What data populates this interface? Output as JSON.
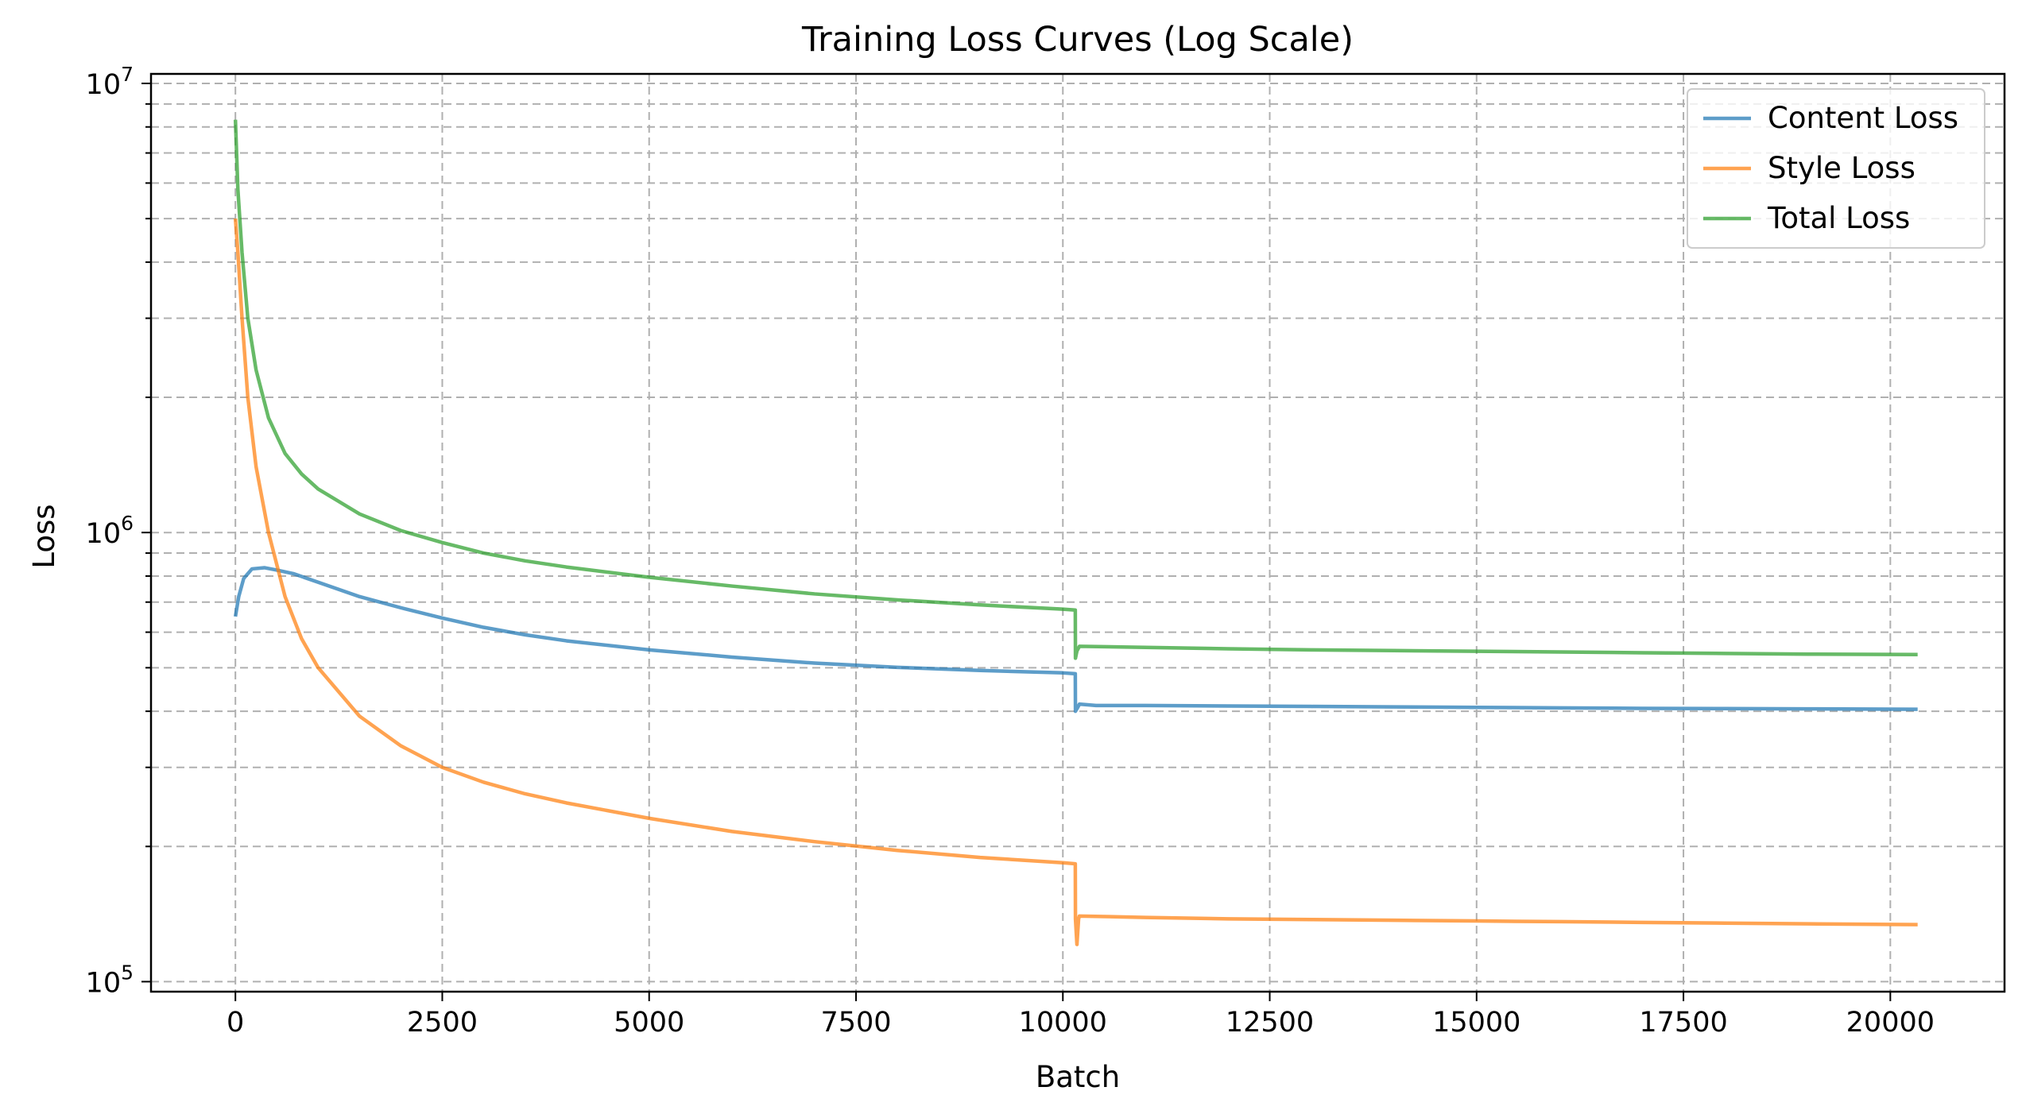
{
  "chart_data": {
    "type": "line",
    "title": "Training Loss Curves (Log Scale)",
    "xlabel": "Batch",
    "ylabel": "Loss",
    "xlim": [
      -1020,
      21380
    ],
    "ylim": [
      95000,
      10500000
    ],
    "yscale": "log",
    "grid": true,
    "legend_position": "top-right",
    "x_ticks": [
      {
        "value": 0,
        "label": "0"
      },
      {
        "value": 2500,
        "label": "2500"
      },
      {
        "value": 5000,
        "label": "5000"
      },
      {
        "value": 7500,
        "label": "7500"
      },
      {
        "value": 10000,
        "label": "10000"
      },
      {
        "value": 12500,
        "label": "12500"
      },
      {
        "value": 15000,
        "label": "15000"
      },
      {
        "value": 17500,
        "label": "17500"
      },
      {
        "value": 20000,
        "label": "20000"
      }
    ],
    "y_major_ticks": [
      {
        "value": 100000,
        "base": "10",
        "exp": "5"
      },
      {
        "value": 1000000,
        "base": "10",
        "exp": "6"
      },
      {
        "value": 10000000,
        "base": "10",
        "exp": "7"
      }
    ],
    "series": [
      {
        "name": "Content Loss",
        "color": "#1f77b4",
        "points": [
          [
            0,
            650000
          ],
          [
            40,
            720000
          ],
          [
            100,
            790000
          ],
          [
            200,
            830000
          ],
          [
            350,
            835000
          ],
          [
            500,
            825000
          ],
          [
            700,
            810000
          ],
          [
            1000,
            775000
          ],
          [
            1500,
            720000
          ],
          [
            2000,
            680000
          ],
          [
            2500,
            645000
          ],
          [
            3000,
            615000
          ],
          [
            3500,
            592000
          ],
          [
            4000,
            574000
          ],
          [
            5000,
            548000
          ],
          [
            6000,
            528000
          ],
          [
            7000,
            512000
          ],
          [
            8000,
            501000
          ],
          [
            9000,
            493000
          ],
          [
            10000,
            487000
          ],
          [
            10150,
            485000
          ],
          [
            10152,
            400000
          ],
          [
            10180,
            408000
          ],
          [
            10200,
            415000
          ],
          [
            10400,
            412000
          ],
          [
            11000,
            412000
          ],
          [
            12000,
            411000
          ],
          [
            13000,
            410000
          ],
          [
            14000,
            409000
          ],
          [
            15000,
            408000
          ],
          [
            16000,
            407000
          ],
          [
            17000,
            406000
          ],
          [
            18000,
            405500
          ],
          [
            19000,
            405000
          ],
          [
            20330,
            404000
          ]
        ]
      },
      {
        "name": "Style Loss",
        "color": "#ff7f0e",
        "points": [
          [
            0,
            5000000
          ],
          [
            30,
            4200000
          ],
          [
            80,
            3000000
          ],
          [
            150,
            2000000
          ],
          [
            250,
            1400000
          ],
          [
            400,
            1000000
          ],
          [
            600,
            720000
          ],
          [
            800,
            580000
          ],
          [
            1000,
            500000
          ],
          [
            1500,
            390000
          ],
          [
            2000,
            335000
          ],
          [
            2500,
            300000
          ],
          [
            3000,
            278000
          ],
          [
            3500,
            262000
          ],
          [
            4000,
            250000
          ],
          [
            5000,
            231000
          ],
          [
            6000,
            216000
          ],
          [
            7000,
            205000
          ],
          [
            8000,
            196000
          ],
          [
            9000,
            189000
          ],
          [
            10000,
            184000
          ],
          [
            10150,
            183000
          ],
          [
            10152,
            138000
          ],
          [
            10170,
            121000
          ],
          [
            10190,
            138000
          ],
          [
            10200,
            140000
          ],
          [
            11000,
            139000
          ],
          [
            12000,
            138000
          ],
          [
            13000,
            137500
          ],
          [
            14000,
            137000
          ],
          [
            15000,
            136500
          ],
          [
            16000,
            136000
          ],
          [
            17000,
            135500
          ],
          [
            18000,
            135000
          ],
          [
            19000,
            134500
          ],
          [
            20330,
            134000
          ]
        ]
      },
      {
        "name": "Total Loss",
        "color": "#2ca02c",
        "points": [
          [
            0,
            8300000
          ],
          [
            30,
            5800000
          ],
          [
            80,
            4200000
          ],
          [
            150,
            3000000
          ],
          [
            250,
            2300000
          ],
          [
            400,
            1800000
          ],
          [
            600,
            1500000
          ],
          [
            800,
            1350000
          ],
          [
            1000,
            1250000
          ],
          [
            1500,
            1100000
          ],
          [
            2000,
            1010000
          ],
          [
            2500,
            950000
          ],
          [
            3000,
            900000
          ],
          [
            3500,
            865000
          ],
          [
            4000,
            838000
          ],
          [
            5000,
            795000
          ],
          [
            6000,
            760000
          ],
          [
            7000,
            730000
          ],
          [
            8000,
            708000
          ],
          [
            9000,
            690000
          ],
          [
            10000,
            675000
          ],
          [
            10150,
            672000
          ],
          [
            10152,
            525000
          ],
          [
            10170,
            545000
          ],
          [
            10200,
            558000
          ],
          [
            11000,
            555000
          ],
          [
            12000,
            551000
          ],
          [
            13000,
            548000
          ],
          [
            14000,
            546000
          ],
          [
            15000,
            544000
          ],
          [
            16000,
            542000
          ],
          [
            17000,
            540000
          ],
          [
            18000,
            538000
          ],
          [
            19000,
            536000
          ],
          [
            20330,
            535000
          ]
        ]
      }
    ]
  }
}
